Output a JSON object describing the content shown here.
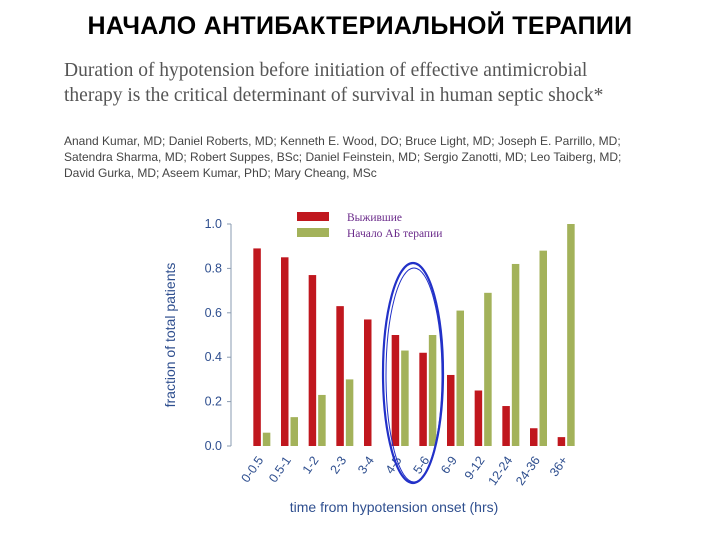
{
  "slide": {
    "title": "НАЧАЛО АНТИБАКТЕРИАЛЬНОЙ ТЕРАПИИ"
  },
  "paper": {
    "title_line1": "Duration of hypotension before initiation of effective antimicrobial",
    "title_line2": "therapy is the critical determinant of survival in human septic shock*",
    "authors_line1": "Anand Kumar, MD; Daniel Roberts, MD; Kenneth E. Wood, DO; Bruce Light, MD; Joseph E. Parrillo, MD;",
    "authors_line2": "Satendra Sharma, MD; Robert Suppes, BSc; Daniel Feinstein, MD; Sergio Zanotti, MD; Leo Taiberg, MD;",
    "authors_line3": "David Gurka, MD; Aseem Kumar, PhD; Mary Cheang, MSc"
  },
  "chart_data": {
    "type": "bar",
    "categories": [
      "0-0.5",
      "0.5-1",
      "1-2",
      "2-3",
      "3-4",
      "4-5",
      "5-6",
      "6-9",
      "9-12",
      "12-24",
      "24-36",
      "36+"
    ],
    "series": [
      {
        "name": "Выжившие",
        "color": "#c0171e",
        "values": [
          0.89,
          0.85,
          0.77,
          0.63,
          0.57,
          0.5,
          0.42,
          0.32,
          0.25,
          0.18,
          0.08,
          0.04
        ]
      },
      {
        "name": "Начало АБ терапии",
        "color": "#a3b25a",
        "values": [
          0.06,
          0.13,
          0.23,
          0.3,
          0.0,
          0.43,
          0.5,
          0.61,
          0.69,
          0.82,
          0.88,
          1.0
        ]
      }
    ],
    "xlabel": "time from hypotension onset (hrs)",
    "ylabel": "fraction of total patients",
    "ylim": [
      0,
      1.0
    ],
    "yticks": [
      "0.0",
      "0.2",
      "0.4",
      "0.6",
      "0.8",
      "1.0"
    ],
    "legend": "top-center",
    "highlight": {
      "shape": "ellipse",
      "color": "#2231c8",
      "categories": [
        "4-5",
        "5-6"
      ]
    }
  }
}
